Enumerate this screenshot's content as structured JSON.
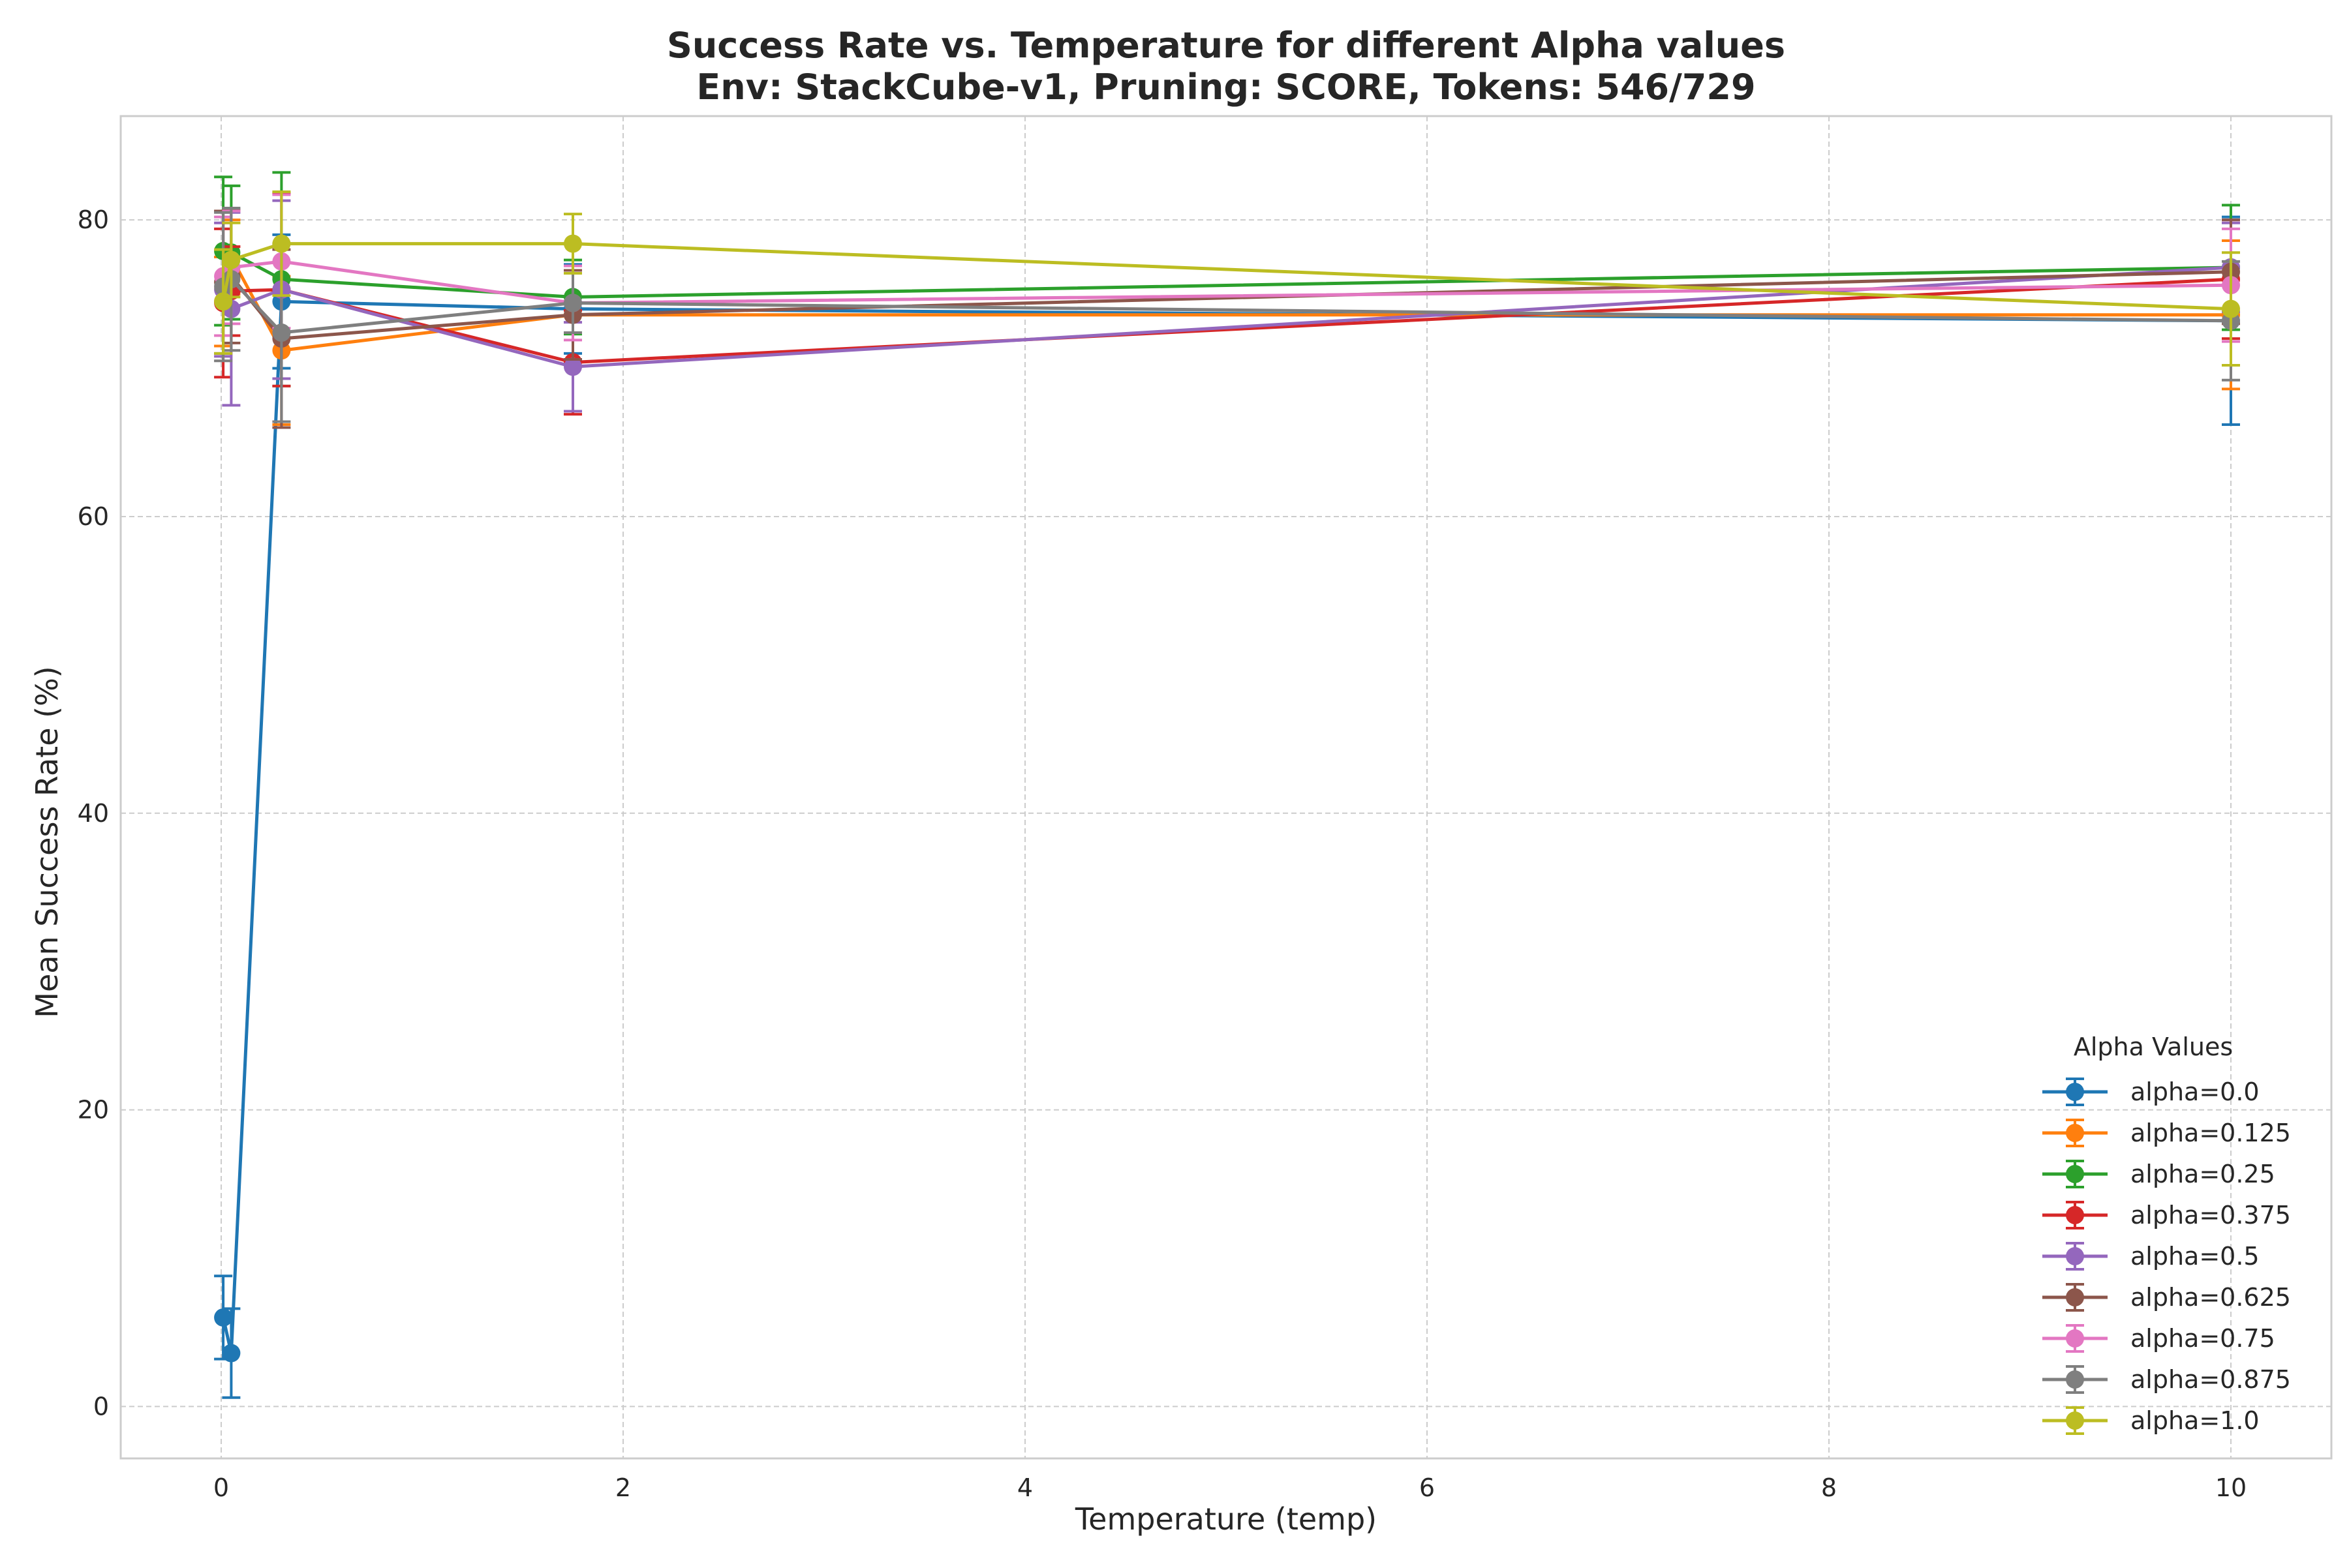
{
  "chart_data": {
    "type": "line",
    "title": "Success Rate vs. Temperature for different Alpha values",
    "subtitle": "Env: StackCube-v1, Pruning: SCORE, Tokens: 546/729",
    "xlabel": "Temperature (temp)",
    "ylabel": "Mean Success Rate (%)",
    "xlim": [
      -0.5,
      10.5
    ],
    "ylim": [
      -3.5,
      87
    ],
    "xticks": [
      0,
      2,
      4,
      6,
      8,
      10
    ],
    "yticks": [
      0,
      20,
      40,
      60,
      80
    ],
    "grid": true,
    "legend_title": "Alpha Values",
    "legend_position": "lower-right",
    "x": [
      0.01,
      0.05,
      0.3,
      1.75,
      10
    ],
    "series": [
      {
        "name": "alpha=0.0",
        "color": "#1f77b4",
        "values": [
          6.0,
          3.6,
          74.5,
          74.0,
          73.2
        ],
        "errors": [
          2.8,
          3.0,
          4.5,
          3.0,
          7.0
        ]
      },
      {
        "name": "alpha=0.125",
        "color": "#ff7f0e",
        "values": [
          74.5,
          77.5,
          71.2,
          73.6,
          73.6
        ],
        "errors": [
          3.0,
          2.5,
          5.0,
          3.0,
          5.0
        ]
      },
      {
        "name": "alpha=0.25",
        "color": "#2ca02c",
        "values": [
          77.9,
          77.8,
          76.0,
          74.8,
          76.8
        ],
        "errors": [
          5.0,
          4.5,
          7.2,
          2.5,
          4.2
        ]
      },
      {
        "name": "alpha=0.375",
        "color": "#d62728",
        "values": [
          74.4,
          75.2,
          75.3,
          70.4,
          76.0
        ],
        "errors": [
          5.0,
          3.0,
          6.5,
          3.5,
          4.0
        ]
      },
      {
        "name": "alpha=0.5",
        "color": "#9467bd",
        "values": [
          75.3,
          74.0,
          75.3,
          70.1,
          76.8
        ],
        "errors": [
          4.5,
          6.5,
          6.0,
          3.0,
          3.0
        ]
      },
      {
        "name": "alpha=0.625",
        "color": "#8c564b",
        "values": [
          75.8,
          76.2,
          72.0,
          73.6,
          76.5
        ],
        "errors": [
          4.8,
          4.5,
          6.0,
          3.0,
          3.5
        ]
      },
      {
        "name": "alpha=0.75",
        "color": "#e377c2",
        "values": [
          76.2,
          76.8,
          77.2,
          74.4,
          75.6
        ],
        "errors": [
          4.0,
          3.8,
          4.5,
          2.5,
          3.8
        ]
      },
      {
        "name": "alpha=0.875",
        "color": "#7f7f7f",
        "values": [
          75.5,
          76.0,
          72.4,
          74.4,
          73.2
        ],
        "errors": [
          5.0,
          4.8,
          6.0,
          2.0,
          4.0
        ]
      },
      {
        "name": "alpha=1.0",
        "color": "#bcbd22",
        "values": [
          74.5,
          77.3,
          78.4,
          78.4,
          74.0
        ],
        "errors": [
          3.5,
          2.5,
          3.5,
          2.0,
          3.8
        ]
      }
    ]
  }
}
